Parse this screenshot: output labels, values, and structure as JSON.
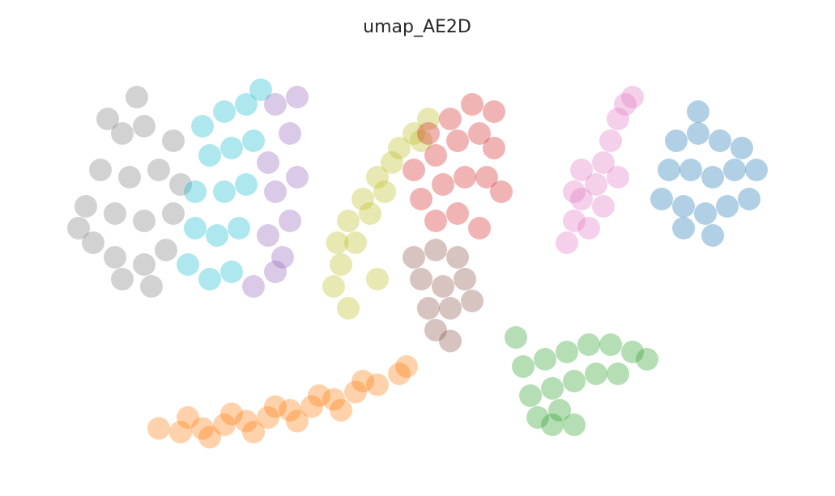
{
  "chart_data": {
    "type": "scatter",
    "title": "umap_AE2D",
    "xlim": [
      0,
      100
    ],
    "ylim": [
      0,
      55
    ],
    "series": [
      {
        "color": "#7f7f7f",
        "x": [
          5,
          8,
          12,
          15,
          4,
          8,
          12,
          16,
          6,
          10,
          14,
          9,
          12,
          7,
          11,
          16,
          3,
          13,
          9,
          17
        ],
        "y": [
          30,
          28,
          27,
          29,
          35,
          34,
          33,
          34,
          40,
          39,
          40,
          45,
          46,
          47,
          50,
          44,
          32,
          24,
          25,
          38
        ]
      },
      {
        "color": "#17becf",
        "x": [
          18,
          21,
          24,
          19,
          22,
          25,
          19,
          23,
          26,
          21,
          24,
          27,
          23,
          26,
          28,
          20
        ],
        "y": [
          27,
          25,
          26,
          32,
          31,
          32,
          37,
          37,
          38,
          42,
          43,
          44,
          48,
          49,
          51,
          46
        ]
      },
      {
        "color": "#9467bd",
        "x": [
          27,
          30,
          29,
          32,
          30,
          33,
          29,
          32,
          30,
          33,
          31
        ],
        "y": [
          24,
          26,
          31,
          33,
          37,
          39,
          41,
          45,
          49,
          50,
          28
        ]
      },
      {
        "color": "#bcbd22",
        "x": [
          38,
          39,
          38.5,
          40,
          41,
          42,
          43,
          44,
          46,
          47,
          49,
          51,
          50,
          45,
          40,
          44
        ],
        "y": [
          24,
          27,
          30,
          33,
          30,
          36,
          34,
          39,
          41,
          43,
          45,
          47,
          44,
          37,
          21,
          25
        ]
      },
      {
        "color": "#d62728",
        "x": [
          49,
          52,
          55,
          58,
          60,
          50,
          53,
          56,
          59,
          61,
          52,
          55,
          58,
          54,
          57,
          60,
          51
        ],
        "y": [
          40,
          42,
          44,
          45,
          43,
          36,
          38,
          39,
          39,
          37,
          33,
          34,
          32,
          47,
          49,
          48,
          45
        ]
      },
      {
        "color": "#8c564b",
        "x": [
          49,
          52,
          55,
          50,
          53,
          56,
          51,
          54,
          52,
          54,
          57
        ],
        "y": [
          28,
          29,
          28,
          25,
          24,
          25,
          21,
          21,
          18,
          16.5,
          22
        ]
      },
      {
        "color": "#e377c2",
        "x": [
          70,
          71,
          72,
          74,
          75,
          76,
          77,
          78,
          79,
          73,
          75,
          77,
          72,
          71
        ],
        "y": [
          30,
          33,
          36,
          38,
          41,
          44,
          47,
          49,
          50,
          32,
          35,
          39,
          40,
          37
        ]
      },
      {
        "color": "#1f77b4",
        "x": [
          83,
          86,
          89,
          92,
          95,
          84,
          87,
          90,
          93,
          85,
          88,
          91,
          94,
          88,
          86,
          90,
          96
        ],
        "y": [
          36,
          35,
          34,
          35,
          36,
          40,
          40,
          39,
          40,
          44,
          45,
          44,
          43,
          48,
          32,
          31,
          40
        ]
      },
      {
        "color": "#2ca02c",
        "x": [
          64,
          67,
          70,
          73,
          76,
          79,
          81,
          65,
          68,
          71,
          74,
          77,
          68,
          71,
          66,
          69,
          63
        ],
        "y": [
          13,
          14,
          15,
          16,
          16,
          15,
          14,
          9,
          10,
          11,
          12,
          12,
          5,
          5,
          6,
          7,
          17
        ]
      },
      {
        "color": "#ff7f0e",
        "x": [
          14,
          17,
          20,
          23,
          26,
          29,
          32,
          35,
          38,
          41,
          44,
          47,
          48,
          18,
          24,
          30,
          36,
          42,
          21,
          27,
          33,
          39
        ],
        "y": [
          4.5,
          4,
          4.5,
          5,
          5.5,
          6,
          7,
          7.5,
          8.5,
          9.5,
          10.5,
          12,
          13,
          6,
          6.5,
          7.5,
          9,
          11,
          3.3,
          4,
          5.5,
          7
        ]
      }
    ]
  }
}
